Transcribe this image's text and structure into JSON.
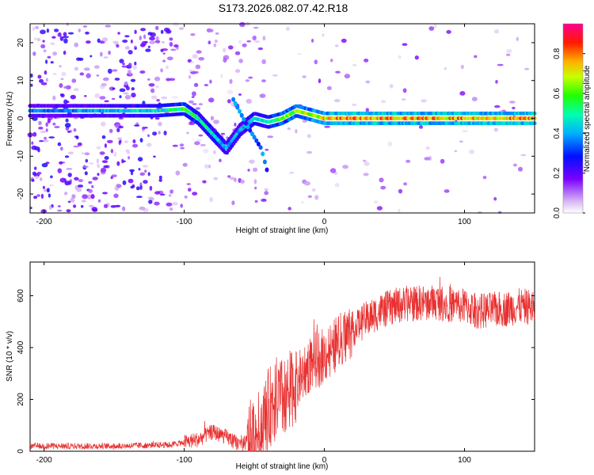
{
  "title": "S173.2026.082.07.42.R18",
  "colors": {
    "line": "#e83030",
    "axis": "#000000",
    "background": "#ffffff"
  },
  "chart_data": [
    {
      "type": "heatmap",
      "xlabel": "Height of straight line (km)",
      "ylabel": "Frequency (Hz)",
      "xlim": [
        -210,
        150
      ],
      "ylim": [
        -25,
        25
      ],
      "xticks": [
        -200,
        -100,
        0,
        100
      ],
      "yticks": [
        20,
        10,
        0,
        -10,
        -20
      ],
      "colorbar": {
        "label": "Normalized spectral amplitude",
        "range": [
          0,
          0.95
        ],
        "ticks": [
          0,
          0.2,
          0.4,
          0.6,
          0.8
        ],
        "colormap": "rainbow (white, violet, blue, cyan, green, yellow, red, magenta)"
      },
      "features": [
        {
          "name": "main_band",
          "x": [
            -200,
            -150,
            -120,
            -100,
            -90,
            -80,
            -70,
            -60,
            -50,
            -40,
            -30,
            -20,
            -10,
            0,
            10,
            50,
            100,
            150
          ],
          "y": [
            2,
            2,
            2,
            2.5,
            0,
            -4,
            -8,
            -3,
            0,
            -1,
            0,
            2,
            1,
            0,
            0,
            0,
            0,
            0
          ],
          "amplitude": [
            0.35,
            0.4,
            0.45,
            0.55,
            0.5,
            0.45,
            0.4,
            0.4,
            0.45,
            0.5,
            0.6,
            0.6,
            0.65,
            0.7,
            0.75,
            0.75,
            0.75,
            0.75
          ]
        },
        {
          "name": "descending_streak",
          "x": [
            -65,
            -55,
            -45,
            -40
          ],
          "y": [
            5,
            -2,
            -8,
            -15
          ],
          "amplitude": 0.35
        }
      ]
    },
    {
      "type": "line",
      "xlabel": "Height of straight line (km)",
      "ylabel": "SNR (10 * v/v)",
      "xlim": [
        -210,
        150
      ],
      "ylim": [
        0,
        730
      ],
      "xticks": [
        -200,
        -100,
        0,
        100
      ],
      "yticks": [
        0,
        200,
        400,
        600
      ],
      "trend": {
        "x": [
          -210,
          -150,
          -110,
          -100,
          -90,
          -80,
          -70,
          -60,
          -50,
          -45,
          -40,
          -35,
          -30,
          -25,
          -20,
          -15,
          -10,
          0,
          10,
          20,
          30,
          40,
          50,
          60,
          80,
          100,
          110,
          120,
          130,
          140,
          150
        ],
        "y": [
          20,
          20,
          25,
          35,
          45,
          75,
          55,
          25,
          45,
          90,
          160,
          210,
          200,
          230,
          270,
          300,
          340,
          370,
          420,
          470,
          510,
          540,
          560,
          570,
          575,
          560,
          540,
          545,
          550,
          560,
          555
        ]
      }
    }
  ]
}
